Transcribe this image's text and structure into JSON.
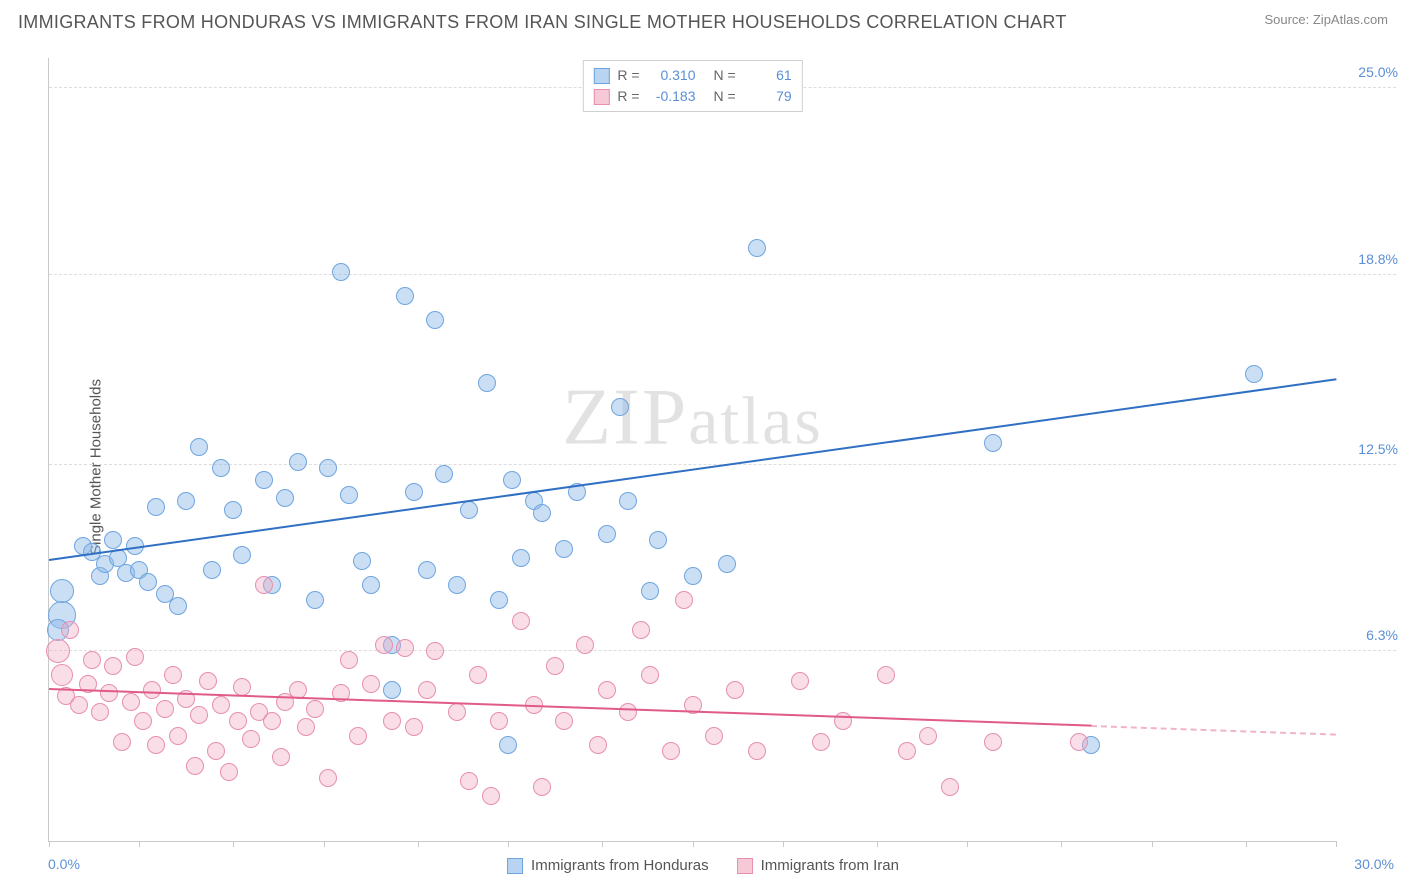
{
  "header": {
    "title": "IMMIGRANTS FROM HONDURAS VS IMMIGRANTS FROM IRAN SINGLE MOTHER HOUSEHOLDS CORRELATION CHART",
    "source": "Source: ZipAtlas.com"
  },
  "chart": {
    "type": "scatter",
    "ylabel": "Single Mother Households",
    "watermark": "ZIPatlas",
    "background_color": "#ffffff",
    "grid_color": "#dddddd",
    "axis_color": "#c9c9c9",
    "tick_label_color": "#5b8fd6",
    "xlim": [
      0,
      30
    ],
    "ylim": [
      0,
      26
    ],
    "x_axis": {
      "min_label": "0.0%",
      "max_label": "30.0%",
      "tick_positions": [
        0,
        2.1,
        4.3,
        6.4,
        8.6,
        10.7,
        12.9,
        15.0,
        17.1,
        19.3,
        21.4,
        23.6,
        25.7,
        27.9,
        30.0
      ]
    },
    "y_gridlines": [
      {
        "value": 6.3,
        "label": "6.3%"
      },
      {
        "value": 12.5,
        "label": "12.5%"
      },
      {
        "value": 18.8,
        "label": "18.8%"
      },
      {
        "value": 25.0,
        "label": "25.0%"
      }
    ],
    "legend_top": [
      {
        "swatch_fill": "#b9d4f0",
        "swatch_border": "#6ea5e0",
        "r_label": "R =",
        "r_value": "0.310",
        "n_label": "N =",
        "n_value": "61"
      },
      {
        "swatch_fill": "#f6c9d6",
        "swatch_border": "#e78fb0",
        "r_label": "R =",
        "r_value": "-0.183",
        "n_label": "N =",
        "n_value": "79"
      }
    ],
    "legend_bottom": [
      {
        "swatch_fill": "#b9d4f0",
        "swatch_border": "#6ea5e0",
        "label": "Immigrants from Honduras"
      },
      {
        "swatch_fill": "#f6c9d6",
        "swatch_border": "#e78fb0",
        "label": "Immigrants from Iran"
      }
    ],
    "series": [
      {
        "name": "Honduras",
        "fill": "rgba(140,185,230,0.45)",
        "stroke": "#6ea5e0",
        "marker_radius": 9,
        "trend": {
          "x1": 0,
          "y1": 9.3,
          "x2": 30,
          "y2": 15.3,
          "color": "#2f6fc4",
          "width": 2.5,
          "dash_after_x": null
        },
        "points": [
          {
            "x": 0.3,
            "y": 7.5,
            "r": 14
          },
          {
            "x": 0.3,
            "y": 8.3,
            "r": 12
          },
          {
            "x": 0.2,
            "y": 7.0,
            "r": 11
          },
          {
            "x": 0.8,
            "y": 9.8
          },
          {
            "x": 1.0,
            "y": 9.6
          },
          {
            "x": 1.2,
            "y": 8.8
          },
          {
            "x": 1.3,
            "y": 9.2
          },
          {
            "x": 1.5,
            "y": 10.0
          },
          {
            "x": 1.6,
            "y": 9.4
          },
          {
            "x": 1.8,
            "y": 8.9
          },
          {
            "x": 2.0,
            "y": 9.8
          },
          {
            "x": 2.1,
            "y": 9.0
          },
          {
            "x": 2.3,
            "y": 8.6
          },
          {
            "x": 2.5,
            "y": 11.1
          },
          {
            "x": 2.7,
            "y": 8.2
          },
          {
            "x": 3.0,
            "y": 7.8
          },
          {
            "x": 3.2,
            "y": 11.3
          },
          {
            "x": 3.5,
            "y": 13.1
          },
          {
            "x": 3.8,
            "y": 9.0
          },
          {
            "x": 4.0,
            "y": 12.4
          },
          {
            "x": 4.3,
            "y": 11.0
          },
          {
            "x": 4.5,
            "y": 9.5
          },
          {
            "x": 5.0,
            "y": 12.0
          },
          {
            "x": 5.2,
            "y": 8.5
          },
          {
            "x": 5.5,
            "y": 11.4
          },
          {
            "x": 5.8,
            "y": 12.6
          },
          {
            "x": 6.2,
            "y": 8.0
          },
          {
            "x": 6.5,
            "y": 12.4
          },
          {
            "x": 6.8,
            "y": 18.9
          },
          {
            "x": 7.0,
            "y": 11.5
          },
          {
            "x": 7.3,
            "y": 9.3
          },
          {
            "x": 7.5,
            "y": 8.5
          },
          {
            "x": 8.0,
            "y": 6.5
          },
          {
            "x": 8.3,
            "y": 18.1
          },
          {
            "x": 8.5,
            "y": 11.6
          },
          {
            "x": 8.8,
            "y": 9.0
          },
          {
            "x": 9.0,
            "y": 17.3
          },
          {
            "x": 9.2,
            "y": 12.2
          },
          {
            "x": 9.5,
            "y": 8.5
          },
          {
            "x": 9.8,
            "y": 11.0
          },
          {
            "x": 10.2,
            "y": 15.2
          },
          {
            "x": 10.5,
            "y": 8.0
          },
          {
            "x": 10.7,
            "y": 3.2
          },
          {
            "x": 10.8,
            "y": 12.0
          },
          {
            "x": 11.0,
            "y": 9.4
          },
          {
            "x": 11.3,
            "y": 11.3
          },
          {
            "x": 11.5,
            "y": 10.9
          },
          {
            "x": 12.0,
            "y": 9.7
          },
          {
            "x": 12.3,
            "y": 11.6
          },
          {
            "x": 13.0,
            "y": 10.2
          },
          {
            "x": 13.3,
            "y": 14.4
          },
          {
            "x": 13.5,
            "y": 11.3
          },
          {
            "x": 14.0,
            "y": 8.3
          },
          {
            "x": 14.2,
            "y": 10.0
          },
          {
            "x": 15.0,
            "y": 8.8
          },
          {
            "x": 15.8,
            "y": 9.2
          },
          {
            "x": 16.5,
            "y": 19.7
          },
          {
            "x": 22.0,
            "y": 13.2
          },
          {
            "x": 24.3,
            "y": 3.2
          },
          {
            "x": 28.1,
            "y": 15.5
          },
          {
            "x": 8.0,
            "y": 5.0
          }
        ]
      },
      {
        "name": "Iran",
        "fill": "rgba(240,170,195,0.40)",
        "stroke": "#e78fb0",
        "marker_radius": 9,
        "trend": {
          "x1": 0,
          "y1": 5.0,
          "x2": 30,
          "y2": 3.5,
          "color": "#e05a8a",
          "width": 2.5,
          "dash_after_x": 24.3
        },
        "points": [
          {
            "x": 0.2,
            "y": 6.3,
            "r": 12
          },
          {
            "x": 0.3,
            "y": 5.5,
            "r": 11
          },
          {
            "x": 0.4,
            "y": 4.8
          },
          {
            "x": 0.5,
            "y": 7.0
          },
          {
            "x": 0.7,
            "y": 4.5
          },
          {
            "x": 0.9,
            "y": 5.2
          },
          {
            "x": 1.0,
            "y": 6.0
          },
          {
            "x": 1.2,
            "y": 4.3
          },
          {
            "x": 1.4,
            "y": 4.9
          },
          {
            "x": 1.5,
            "y": 5.8
          },
          {
            "x": 1.7,
            "y": 3.3
          },
          {
            "x": 1.9,
            "y": 4.6
          },
          {
            "x": 2.0,
            "y": 6.1
          },
          {
            "x": 2.2,
            "y": 4.0
          },
          {
            "x": 2.4,
            "y": 5.0
          },
          {
            "x": 2.5,
            "y": 3.2
          },
          {
            "x": 2.7,
            "y": 4.4
          },
          {
            "x": 2.9,
            "y": 5.5
          },
          {
            "x": 3.0,
            "y": 3.5
          },
          {
            "x": 3.2,
            "y": 4.7
          },
          {
            "x": 3.4,
            "y": 2.5
          },
          {
            "x": 3.5,
            "y": 4.2
          },
          {
            "x": 3.7,
            "y": 5.3
          },
          {
            "x": 3.9,
            "y": 3.0
          },
          {
            "x": 4.0,
            "y": 4.5
          },
          {
            "x": 4.2,
            "y": 2.3
          },
          {
            "x": 4.4,
            "y": 4.0
          },
          {
            "x": 4.5,
            "y": 5.1
          },
          {
            "x": 4.7,
            "y": 3.4
          },
          {
            "x": 4.9,
            "y": 4.3
          },
          {
            "x": 5.0,
            "y": 8.5
          },
          {
            "x": 5.2,
            "y": 4.0
          },
          {
            "x": 5.4,
            "y": 2.8
          },
          {
            "x": 5.5,
            "y": 4.6
          },
          {
            "x": 5.8,
            "y": 5.0
          },
          {
            "x": 6.0,
            "y": 3.8
          },
          {
            "x": 6.2,
            "y": 4.4
          },
          {
            "x": 6.5,
            "y": 2.1
          },
          {
            "x": 6.8,
            "y": 4.9
          },
          {
            "x": 7.0,
            "y": 6.0
          },
          {
            "x": 7.2,
            "y": 3.5
          },
          {
            "x": 7.5,
            "y": 5.2
          },
          {
            "x": 7.8,
            "y": 6.5
          },
          {
            "x": 8.0,
            "y": 4.0
          },
          {
            "x": 8.3,
            "y": 6.4
          },
          {
            "x": 8.5,
            "y": 3.8
          },
          {
            "x": 8.8,
            "y": 5.0
          },
          {
            "x": 9.0,
            "y": 6.3
          },
          {
            "x": 9.5,
            "y": 4.3
          },
          {
            "x": 9.8,
            "y": 2.0
          },
          {
            "x": 10.0,
            "y": 5.5
          },
          {
            "x": 10.3,
            "y": 1.5
          },
          {
            "x": 10.5,
            "y": 4.0
          },
          {
            "x": 11.0,
            "y": 7.3
          },
          {
            "x": 11.3,
            "y": 4.5
          },
          {
            "x": 11.5,
            "y": 1.8
          },
          {
            "x": 11.8,
            "y": 5.8
          },
          {
            "x": 12.0,
            "y": 4.0
          },
          {
            "x": 12.5,
            "y": 6.5
          },
          {
            "x": 12.8,
            "y": 3.2
          },
          {
            "x": 13.0,
            "y": 5.0
          },
          {
            "x": 13.5,
            "y": 4.3
          },
          {
            "x": 13.8,
            "y": 7.0
          },
          {
            "x": 14.0,
            "y": 5.5
          },
          {
            "x": 14.5,
            "y": 3.0
          },
          {
            "x": 14.8,
            "y": 8.0
          },
          {
            "x": 15.0,
            "y": 4.5
          },
          {
            "x": 15.5,
            "y": 3.5
          },
          {
            "x": 16.0,
            "y": 5.0
          },
          {
            "x": 16.5,
            "y": 3.0
          },
          {
            "x": 17.5,
            "y": 5.3
          },
          {
            "x": 18.0,
            "y": 3.3
          },
          {
            "x": 18.5,
            "y": 4.0
          },
          {
            "x": 19.5,
            "y": 5.5
          },
          {
            "x": 20.0,
            "y": 3.0
          },
          {
            "x": 20.5,
            "y": 3.5
          },
          {
            "x": 21.0,
            "y": 1.8
          },
          {
            "x": 22.0,
            "y": 3.3
          },
          {
            "x": 24.0,
            "y": 3.3
          }
        ]
      }
    ]
  }
}
